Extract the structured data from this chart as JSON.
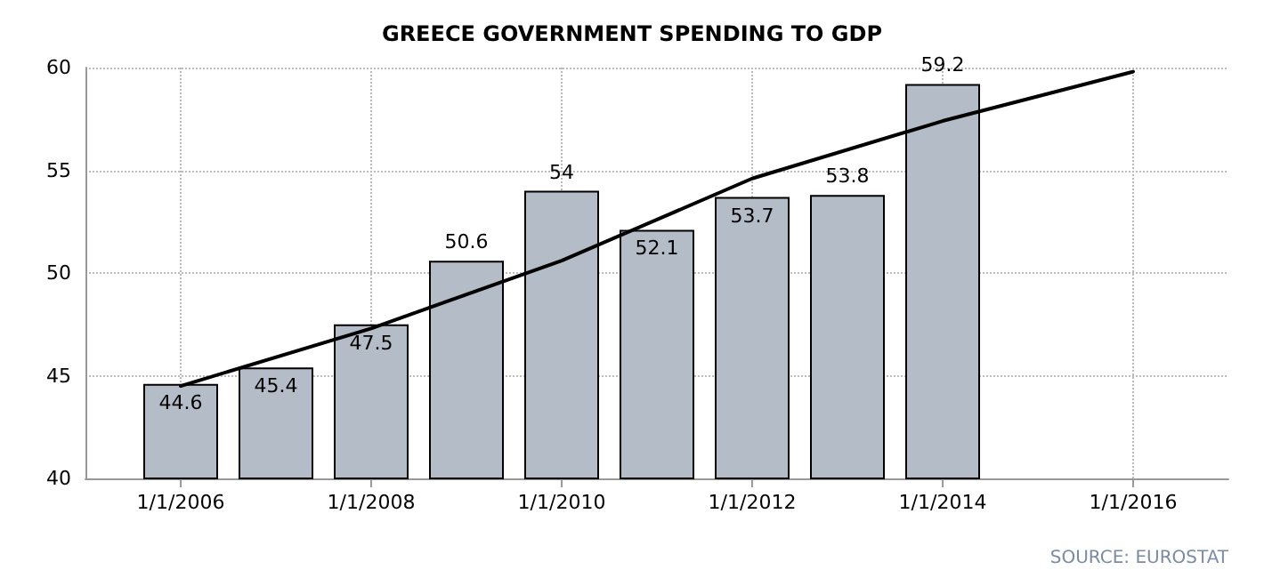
{
  "chart_data": {
    "type": "bar",
    "title": "GREECE GOVERNMENT SPENDING TO GDP",
    "x": [
      "2006",
      "2007",
      "2008",
      "2009",
      "2010",
      "2011",
      "2012",
      "2013",
      "2014"
    ],
    "series": [
      {
        "color": "#b4bcc8",
        "values": [
          44.6,
          45.4,
          47.5,
          50.6,
          54,
          52.1,
          53.7,
          53.8,
          59.2
        ],
        "value_labels": [
          "44.6",
          "45.4",
          "47.5",
          "50.6",
          "54",
          "52.1",
          "53.7",
          "53.8",
          "59.2"
        ]
      },
      {
        "type": "line",
        "color": "#000000",
        "x": [
          "2006",
          "2008",
          "2010",
          "2012",
          "2014",
          "2016"
        ],
        "values": [
          44.5,
          47.3,
          50.6,
          54.6,
          57.4,
          59.8
        ]
      }
    ],
    "xlim": [
      "2005",
      "2017"
    ],
    "xticks": [
      {
        "value": "2006",
        "label": "1/1/2006"
      },
      {
        "value": "2008",
        "label": "1/1/2008"
      },
      {
        "value": "2010",
        "label": "1/1/2010"
      },
      {
        "value": "2012",
        "label": "1/1/2012"
      },
      {
        "value": "2014",
        "label": "1/1/2014"
      },
      {
        "value": "2016",
        "label": "1/1/2016"
      }
    ],
    "ylim": [
      40,
      60
    ],
    "yticks": [
      40,
      45,
      50,
      55,
      60
    ],
    "grid": true,
    "marker": "none",
    "line_style": "solid",
    "annotations": [
      "SOURCE: EUROSTAT"
    ]
  }
}
